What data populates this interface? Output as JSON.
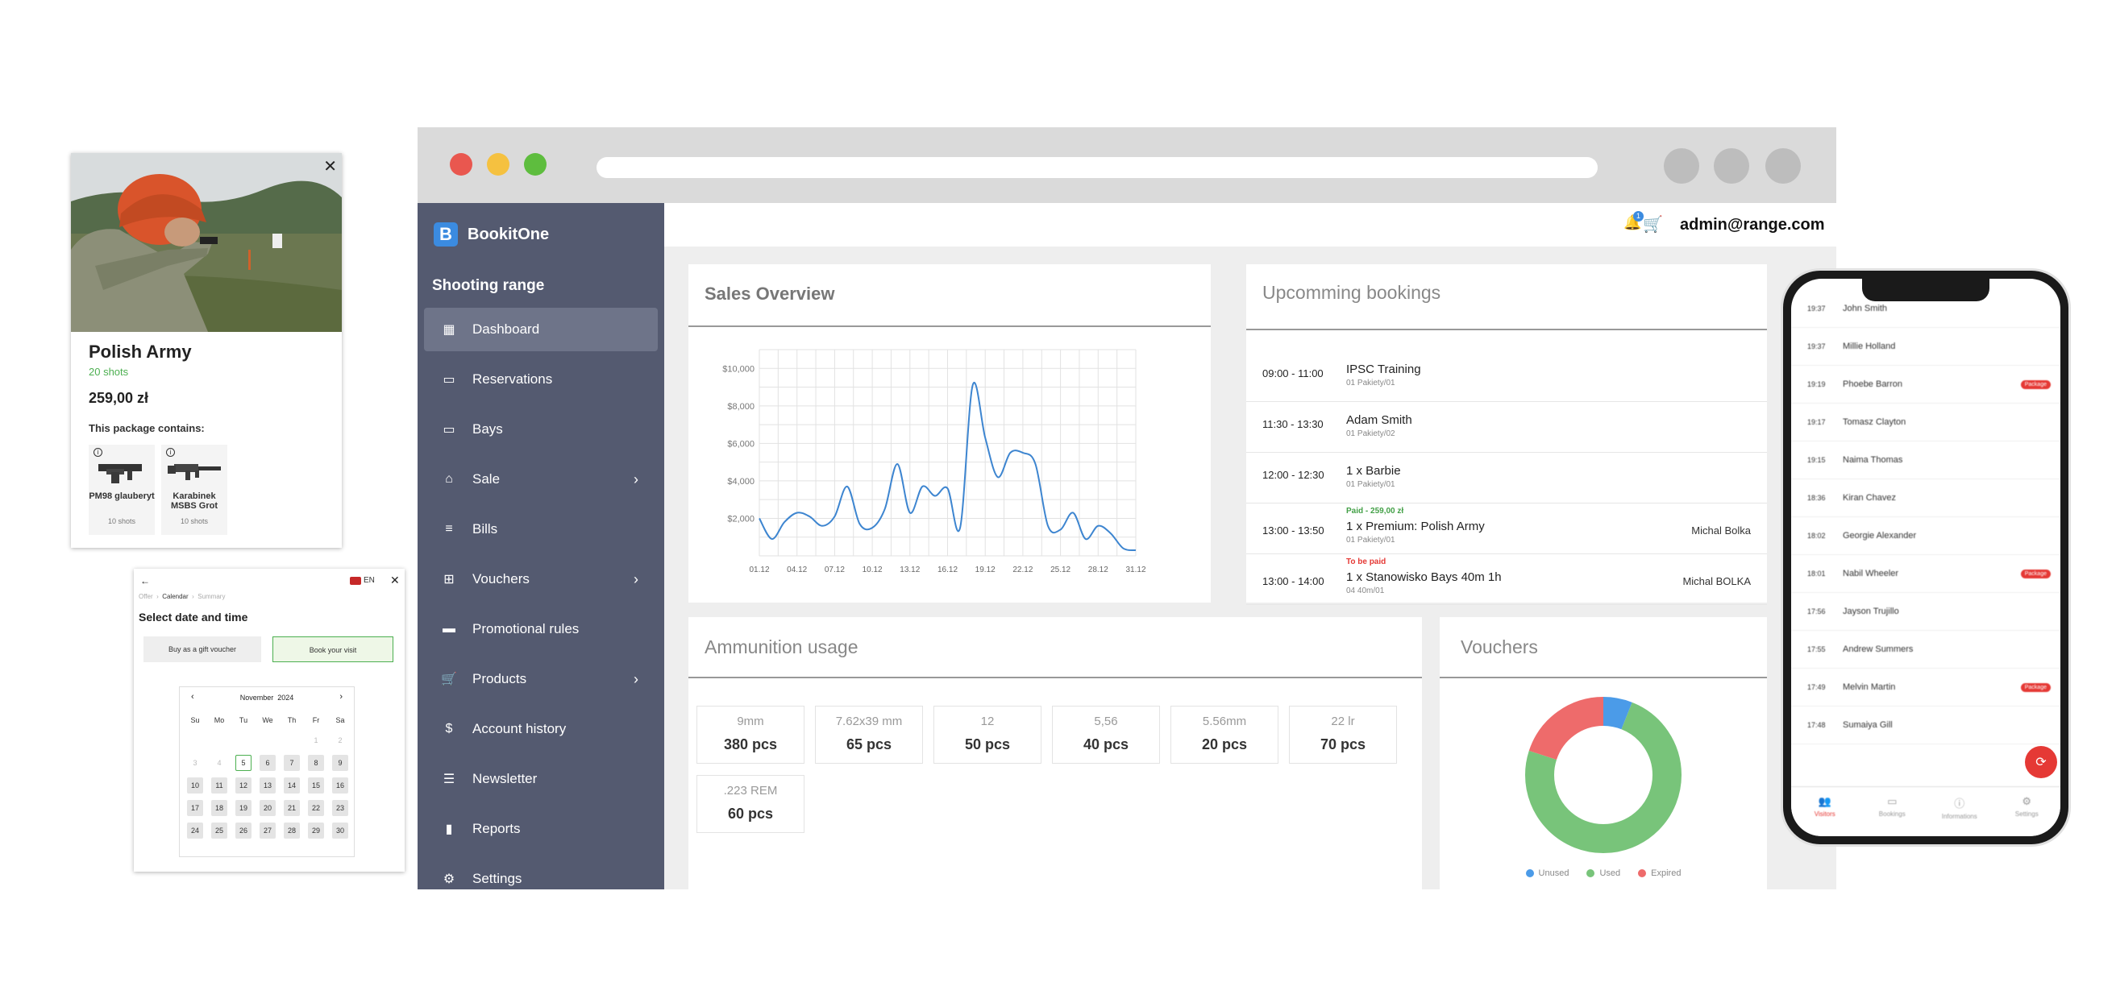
{
  "app": {
    "brand": "BookitOne",
    "brand_letter": "B",
    "organization": "Shooting range",
    "user_email": "admin@range.com",
    "notification_count": "1"
  },
  "sidebar": {
    "items": [
      {
        "label": "Dashboard",
        "icon": "dashboard-icon",
        "active": true,
        "has_submenu": false
      },
      {
        "label": "Reservations",
        "icon": "calendar-icon",
        "active": false,
        "has_submenu": false
      },
      {
        "label": "Bays",
        "icon": "calendar-icon",
        "active": false,
        "has_submenu": false
      },
      {
        "label": "Sale",
        "icon": "store-icon",
        "active": false,
        "has_submenu": true
      },
      {
        "label": "Bills",
        "icon": "receipt-icon",
        "active": false,
        "has_submenu": false
      },
      {
        "label": "Vouchers",
        "icon": "gift-icon",
        "active": false,
        "has_submenu": true
      },
      {
        "label": "Promotional rules",
        "icon": "ticket-icon",
        "active": false,
        "has_submenu": false
      },
      {
        "label": "Products",
        "icon": "cart-icon",
        "active": false,
        "has_submenu": true
      },
      {
        "label": "Account history",
        "icon": "dollar-icon",
        "active": false,
        "has_submenu": false
      },
      {
        "label": "Newsletter",
        "icon": "list-icon",
        "active": false,
        "has_submenu": false
      },
      {
        "label": "Reports",
        "icon": "chart-icon",
        "active": false,
        "has_submenu": false
      },
      {
        "label": "Settings",
        "icon": "gear-icon",
        "active": false,
        "has_submenu": false
      }
    ]
  },
  "sales": {
    "title": "Sales Overview",
    "y_ticks": [
      "$2,000",
      "$4,000",
      "$6,000",
      "$8,000",
      "$10,000"
    ],
    "x_ticks": [
      "01.12",
      "04.12",
      "07.12",
      "10.12",
      "13.12",
      "16.12",
      "19.12",
      "22.12",
      "25.12",
      "28.12",
      "31.12"
    ],
    "line_color": "#3d85d0",
    "chart_data": {
      "type": "line",
      "ylim": [
        0,
        11000
      ],
      "x": [
        1,
        2,
        3,
        4,
        5,
        6,
        7,
        8,
        9,
        10,
        11,
        12,
        13,
        14,
        15,
        16,
        17,
        18,
        19,
        20,
        21,
        22,
        23,
        24,
        25,
        26,
        27,
        28,
        29,
        30,
        31
      ],
      "values": [
        2000,
        900,
        1800,
        2300,
        2100,
        1600,
        2100,
        3700,
        1700,
        1500,
        2500,
        4900,
        2300,
        3700,
        3200,
        3600,
        1500,
        9100,
        6300,
        4200,
        5500,
        5500,
        4900,
        1600,
        1400,
        2300,
        900,
        1600,
        1200,
        400,
        300
      ]
    }
  },
  "bookings": {
    "title": "Upcomming bookings",
    "rows": [
      {
        "time": "09:00 - 11:00",
        "title": "IPSC Training",
        "sub": "01 Pakiety/01",
        "status": "",
        "person": ""
      },
      {
        "time": "11:30 - 13:30",
        "title": "Adam Smith",
        "sub": "01 Pakiety/02",
        "status": "",
        "person": ""
      },
      {
        "time": "12:00 - 12:30",
        "title": "1 x Barbie",
        "sub": "01 Pakiety/01",
        "status": "",
        "person": ""
      },
      {
        "time": "13:00 - 13:50",
        "title": "1 x Premium: Polish Army",
        "sub": "01 Pakiety/01",
        "status": "Paid - 259,00 zł",
        "person": "Michal Bolka"
      },
      {
        "time": "13:00 - 14:00",
        "title": "1 x Stanowisko Bays 40m 1h",
        "sub": "04 40m/01",
        "status": "To be paid",
        "person": "Michal BOLKA"
      }
    ]
  },
  "ammo": {
    "title": "Ammunition usage",
    "items": [
      {
        "type": "9mm",
        "qty": "380 pcs"
      },
      {
        "type": "7.62x39 mm",
        "qty": "65 pcs"
      },
      {
        "type": "12",
        "qty": "50 pcs"
      },
      {
        "type": "5,56",
        "qty": "40 pcs"
      },
      {
        "type": "5.56mm",
        "qty": "20 pcs"
      },
      {
        "type": "22 lr",
        "qty": "70 pcs"
      },
      {
        "type": ".223 REM",
        "qty": "60 pcs"
      }
    ]
  },
  "vouchers": {
    "title": "Vouchers",
    "chart_data": {
      "type": "pie",
      "labels": [
        "Unused",
        "Used",
        "Expired"
      ],
      "values": [
        6,
        74,
        20
      ],
      "colors": [
        "#4b9be8",
        "#78c47a",
        "#ee6b6b"
      ],
      "legend": "bottom"
    }
  },
  "product": {
    "name": "Polish Army",
    "shots": "20 shots",
    "price": "259,00 zł",
    "contains_label": "This package contains:",
    "items": [
      {
        "name": "PM98 glauberyt",
        "shots": "10 shots"
      },
      {
        "name": "Karabinek MSBS Grot",
        "shots": "10 shots"
      }
    ]
  },
  "calendar": {
    "lang": "EN",
    "crumbs": [
      "Offer",
      "Calendar",
      "Summary"
    ],
    "title": "Select date and time",
    "gift_button": "Buy as a gift voucher",
    "book_button": "Book your visit",
    "month": "November",
    "year": "2024",
    "dows": [
      "Su",
      "Mo",
      "Tu",
      "We",
      "Th",
      "Fr",
      "Sa"
    ],
    "weeks": [
      [
        "",
        "",
        "",
        "",
        "",
        "1",
        "2"
      ],
      [
        "3",
        "4",
        "5",
        "6",
        "7",
        "8",
        "9"
      ],
      [
        "10",
        "11",
        "12",
        "13",
        "14",
        "15",
        "16"
      ],
      [
        "17",
        "18",
        "19",
        "20",
        "21",
        "22",
        "23"
      ],
      [
        "24",
        "25",
        "26",
        "27",
        "28",
        "29",
        "30"
      ]
    ],
    "disabled": [
      "1",
      "2",
      "3",
      "4"
    ],
    "selected": "5"
  },
  "phone": {
    "visitors": [
      {
        "time": "19:37",
        "name": "John Smith",
        "package": ""
      },
      {
        "time": "19:37",
        "name": "Millie Holland",
        "package": ""
      },
      {
        "time": "19:19",
        "name": "Phoebe Barron",
        "package": "Package"
      },
      {
        "time": "19:17",
        "name": "Tomasz Clayton",
        "package": ""
      },
      {
        "time": "19:15",
        "name": "Naima Thomas",
        "package": ""
      },
      {
        "time": "18:36",
        "name": "Kiran Chavez",
        "package": ""
      },
      {
        "time": "18:02",
        "name": "Georgie Alexander",
        "package": ""
      },
      {
        "time": "18:01",
        "name": "Nabil Wheeler",
        "package": "Package"
      },
      {
        "time": "17:56",
        "name": "Jayson Trujillo",
        "package": ""
      },
      {
        "time": "17:55",
        "name": "Andrew Summers",
        "package": ""
      },
      {
        "time": "17:49",
        "name": "Melvin Martin",
        "package": "Package"
      },
      {
        "time": "17:48",
        "name": "Sumaiya Gill",
        "package": ""
      }
    ],
    "tabs": [
      "Visitors",
      "Bookings",
      "Informations",
      "Settings"
    ]
  }
}
